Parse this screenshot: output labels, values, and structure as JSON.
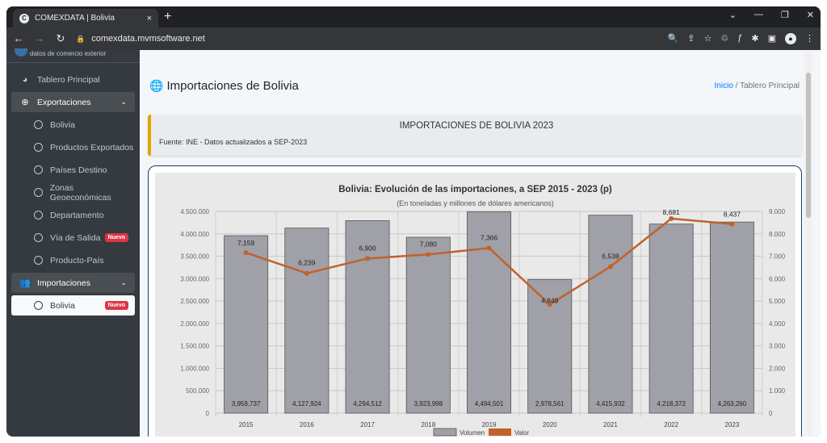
{
  "browser": {
    "tab_title": "COMEXDATA | Bolivia",
    "tab_close": "×",
    "new_tab": "+",
    "url": "comexdata.mvmsoftware.net"
  },
  "sidebar": {
    "brand": "datos de comercio exterior",
    "items": [
      {
        "label": "Tablero Principal",
        "icon": "dashboard-icon"
      },
      {
        "label": "Exportaciones",
        "icon": "globe-icon"
      },
      {
        "label": "Bolivia",
        "icon": "circle-icon"
      },
      {
        "label": "Productos Exportados",
        "icon": "circle-icon"
      },
      {
        "label": "Países Destino",
        "icon": "circle-icon"
      },
      {
        "label": "Zonas Geoeconómicas",
        "icon": "circle-icon"
      },
      {
        "label": "Departamento",
        "icon": "circle-icon"
      },
      {
        "label": "Vía de Salida",
        "icon": "circle-icon",
        "badge": "Nuevo"
      },
      {
        "label": "Producto-País",
        "icon": "circle-icon"
      },
      {
        "label": "Importaciones",
        "icon": "users-icon"
      },
      {
        "label": "Bolivia",
        "icon": "circle-icon",
        "badge": "Nuevo"
      }
    ]
  },
  "header": {
    "title": "Importaciones de Bolivia",
    "breadcrumb_home": "Inicio",
    "breadcrumb_sep": "/",
    "breadcrumb_current": "Tablero Principal"
  },
  "callout": {
    "heading": "IMPORTACIONES DE BOLIVIA 2023",
    "source": "Fuente: INE - Datos actualizados a SEP-2023",
    "accent": "#e0a800"
  },
  "chart_data": {
    "type": "bar",
    "title": "Bolivia: Evolución de las importaciones, a SEP 2015 - 2023 (p)",
    "subtitle": "(En toneladas y millones de dólares americanos)",
    "categories": [
      "2015",
      "2016",
      "2017",
      "2018",
      "2019",
      "2020",
      "2021",
      "2022",
      "2023"
    ],
    "series": [
      {
        "name": "Volumen",
        "type": "bar",
        "axis": "left",
        "color": "#a0a0a8",
        "values": [
          3959737,
          4127924,
          4294512,
          3923998,
          4494501,
          2978561,
          4415932,
          4218372,
          4263260
        ],
        "labels": [
          "3,959,737",
          "4,127,924",
          "4,294,512",
          "3,923,998",
          "4,494,501",
          "2,978,561",
          "4,415,932",
          "4,218,372",
          "4,263,260"
        ]
      },
      {
        "name": "Valor",
        "type": "line",
        "axis": "right",
        "color": "#c0622a",
        "values": [
          7159,
          6239,
          6900,
          7080,
          7366,
          4849,
          6538,
          8681,
          8437
        ],
        "labels": [
          "7,159",
          "6,239",
          "6,900",
          "7,080",
          "7,366",
          "4,849",
          "6,538",
          "8,681",
          "8,437"
        ]
      }
    ],
    "y_left": {
      "min": 0,
      "max": 4500000,
      "ticks": [
        "0",
        "500.000",
        "1.000.000",
        "1.500.000",
        "2.000.000",
        "2.500.000",
        "3.000.000",
        "3.500.000",
        "4.000.000",
        "4.500.000"
      ]
    },
    "y_right": {
      "min": 0,
      "max": 9000,
      "ticks": [
        "0",
        "1.000",
        "2.000",
        "3.000",
        "4.000",
        "5.000",
        "6.000",
        "7.000",
        "8.000",
        "9.000"
      ]
    },
    "grid": true,
    "legend": "bottom"
  }
}
